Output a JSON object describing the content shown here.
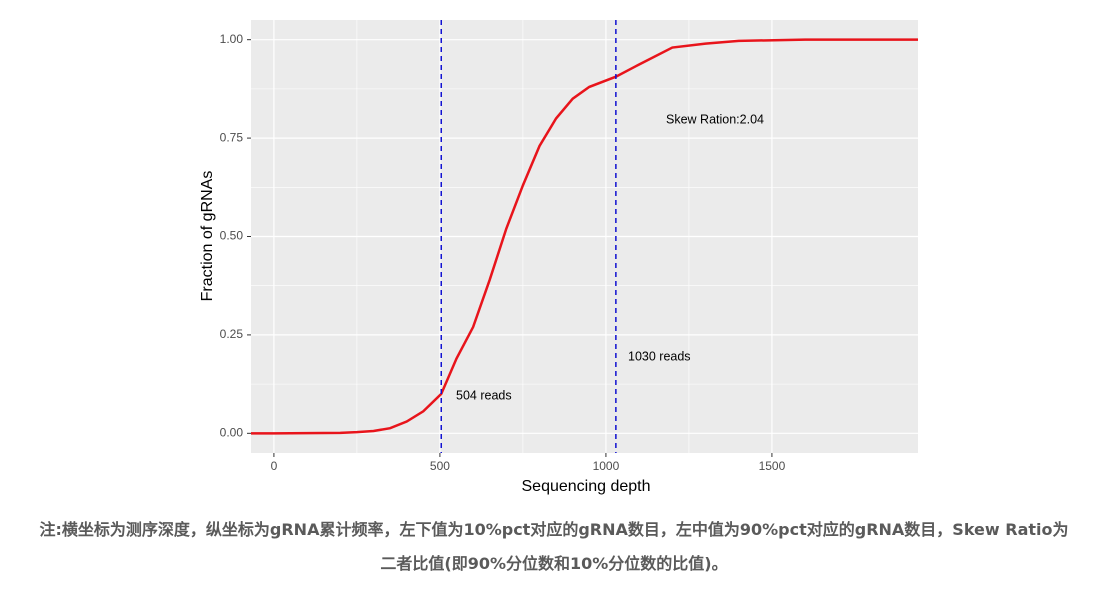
{
  "chart_data": {
    "type": "line",
    "x_label": "Sequencing depth",
    "y_label": "Fraction of gRNAs",
    "x": [
      -69,
      0,
      200,
      250,
      300,
      350,
      400,
      450,
      504,
      550,
      600,
      650,
      700,
      750,
      800,
      850,
      900,
      950,
      1030,
      1100,
      1200,
      1300,
      1400,
      1600,
      1940
    ],
    "series": [
      {
        "name": "Fraction of gRNAs",
        "color": "#e8141b",
        "values": [
          0,
          0,
          0.001,
          0.003,
          0.006,
          0.013,
          0.03,
          0.056,
          0.1,
          0.19,
          0.27,
          0.39,
          0.52,
          0.63,
          0.73,
          0.8,
          0.85,
          0.88,
          0.906,
          0.937,
          0.98,
          0.99,
          0.997,
          1.0,
          1.0
        ]
      }
    ],
    "vlines": [
      {
        "value": 504,
        "color": "#1010d0"
      },
      {
        "value": 1030,
        "color": "#1010d0"
      }
    ],
    "annotations": [
      "504 reads",
      "1030 reads",
      "Skew Ration:2.04"
    ],
    "xlim": [
      -69,
      1940
    ],
    "ylim": [
      -0.05,
      1.05
    ],
    "xticks": [
      0,
      500,
      1000,
      1500
    ],
    "yticks": [
      {
        "value": 0,
        "label": "0.00"
      },
      {
        "value": 0.25,
        "label": "0.25"
      },
      {
        "value": 0.5,
        "label": "0.50"
      },
      {
        "value": 0.75,
        "label": "0.75"
      },
      {
        "value": 1,
        "label": "1.00"
      }
    ],
    "grid": true
  },
  "caption": [
    "注:横坐标为测序深度，纵坐标为gRNA累计频率，左下值为10%pct对应的gRNA数目，左中值为90%pct对应的gRNA数目，Skew Ratio为",
    "二者比值(即90%分位数和10%分位数的比值)。"
  ]
}
